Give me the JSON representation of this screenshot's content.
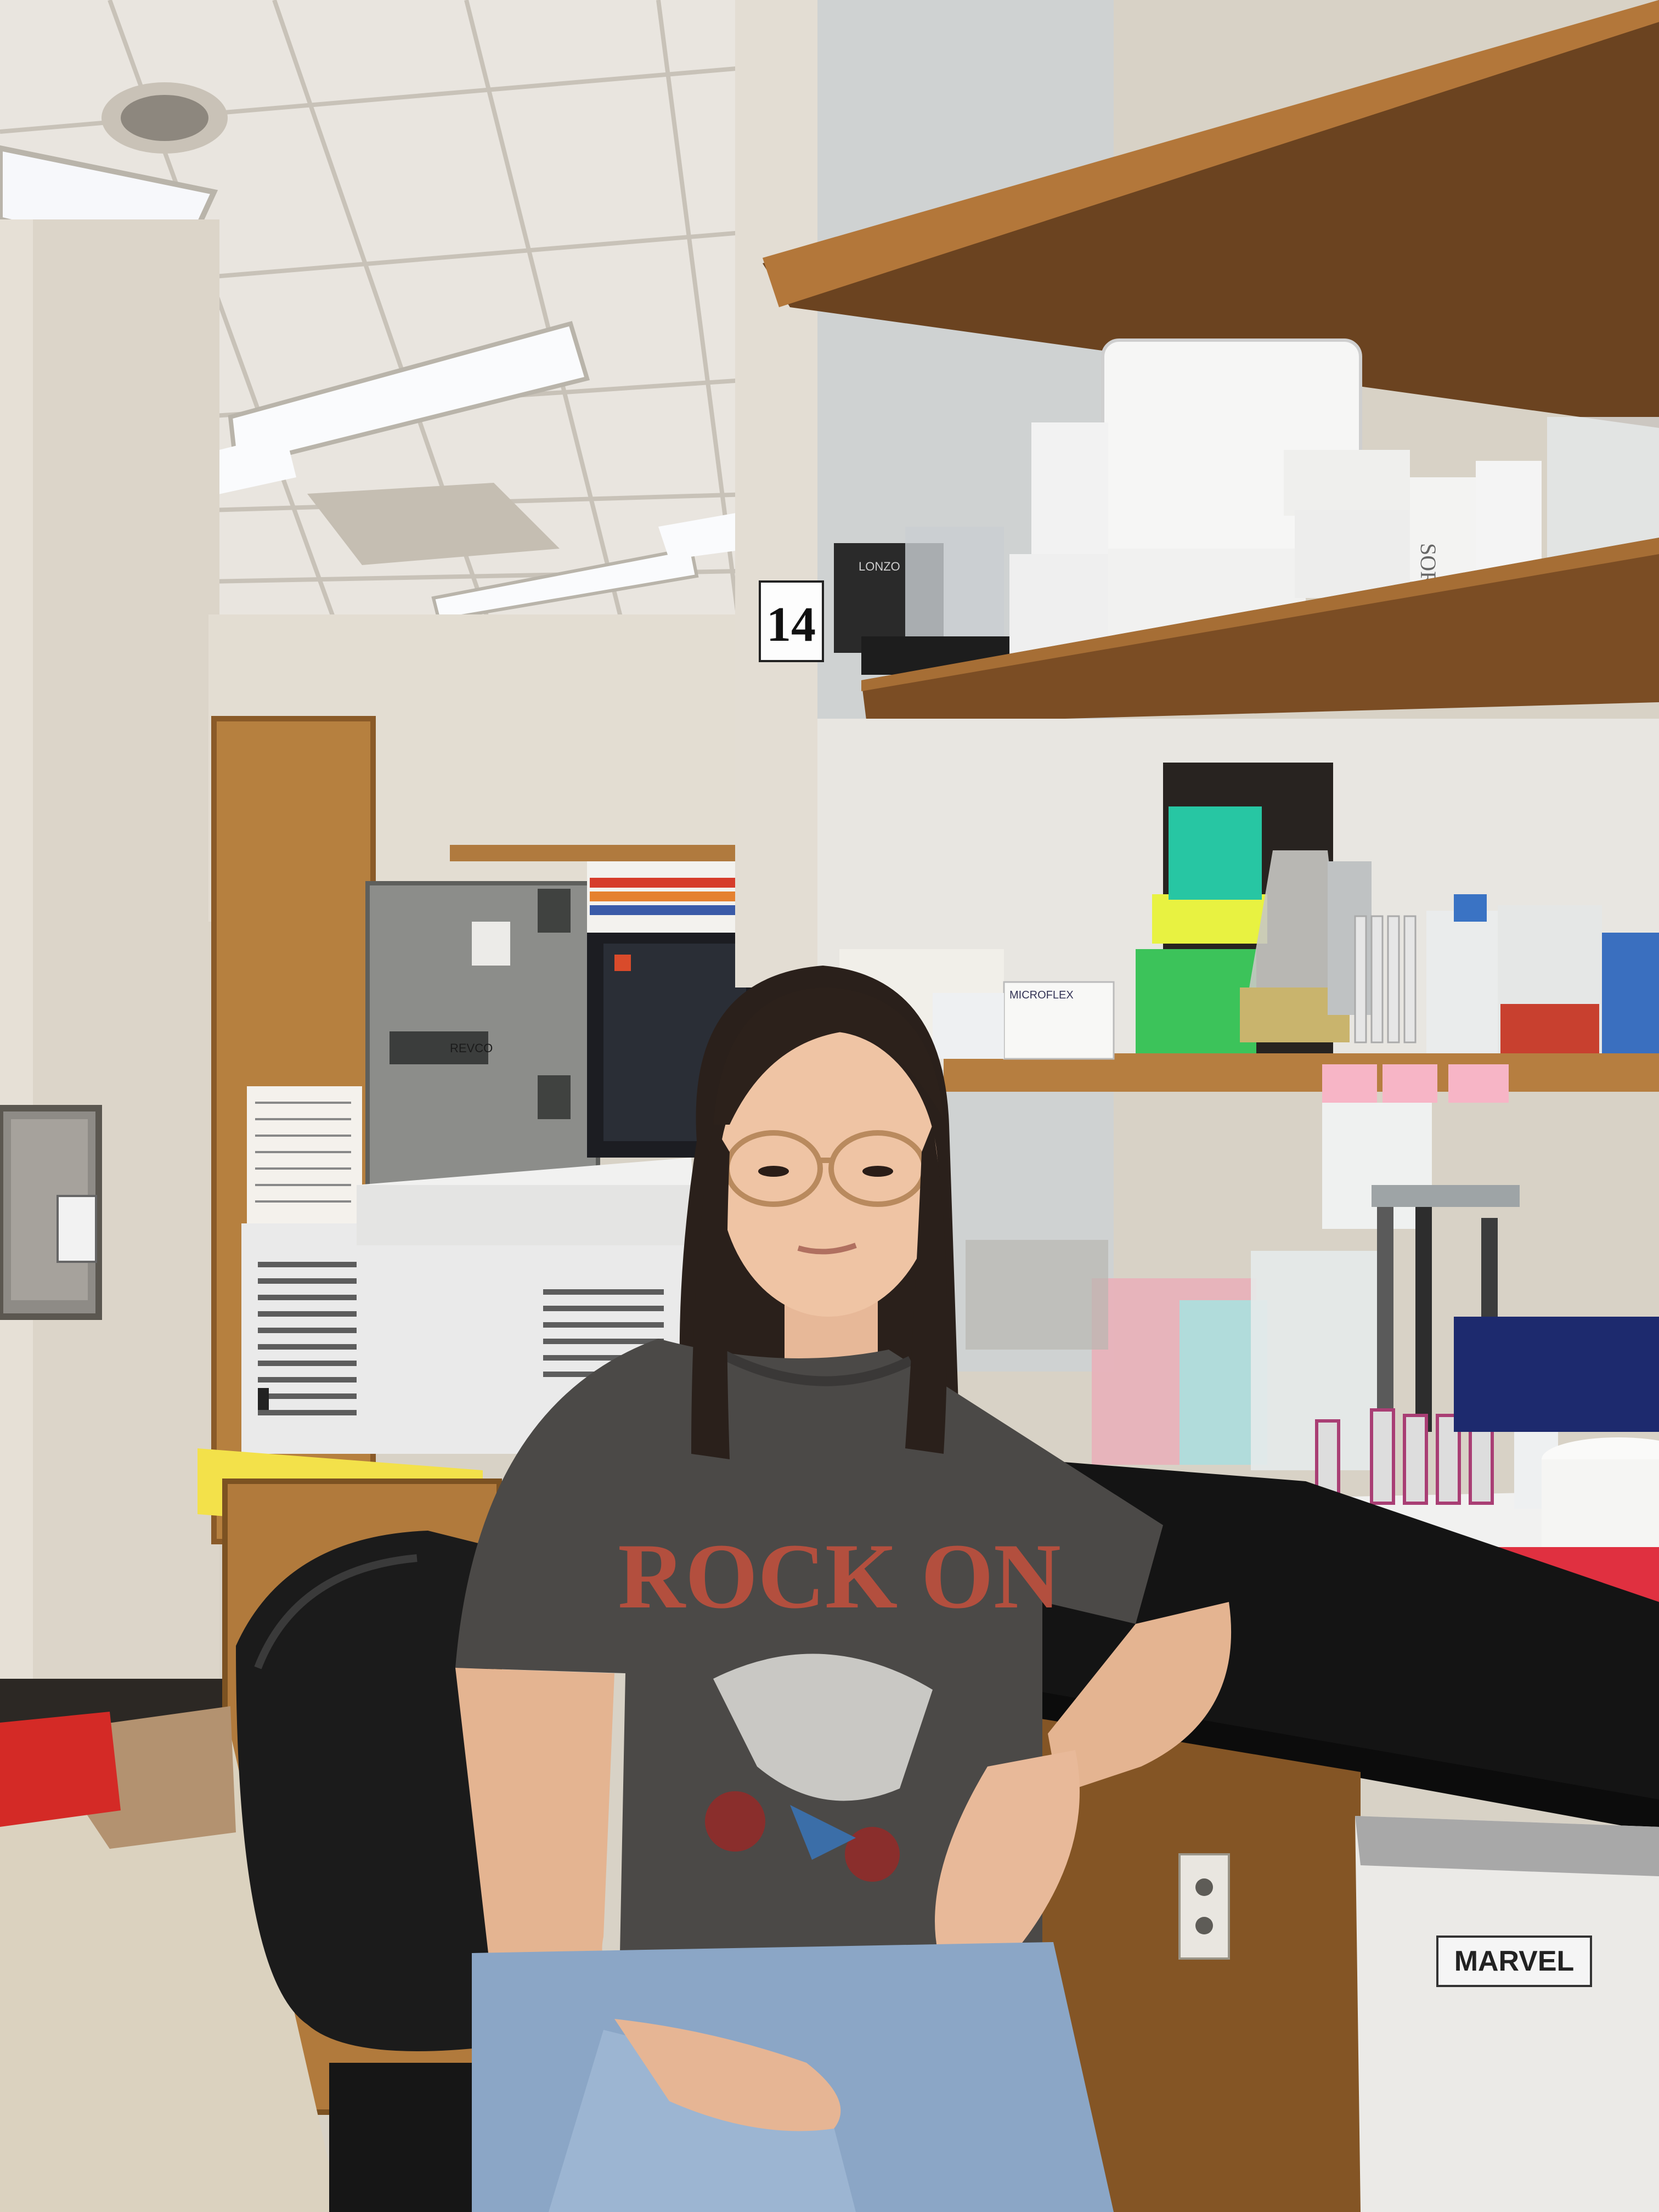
{
  "scene": {
    "bay_number": "14",
    "box_brand": "LONZO",
    "box_brand_small": "MICROFLEX",
    "shirt_text": "ROCK ON",
    "fridge_brand": "MARVEL",
    "container_text": "SORVALL",
    "equipment_brand": "REVCO"
  },
  "colors": {
    "ceiling": "#e6e2dc",
    "wall_left": "#ddd6cb",
    "wood": "#b07a3e",
    "countertop": "#1a1a1a",
    "shirt": "#4a4846",
    "jeans": "#8aa3c3",
    "chair": "#1b1b1b",
    "floor": "#d9d0bd"
  }
}
